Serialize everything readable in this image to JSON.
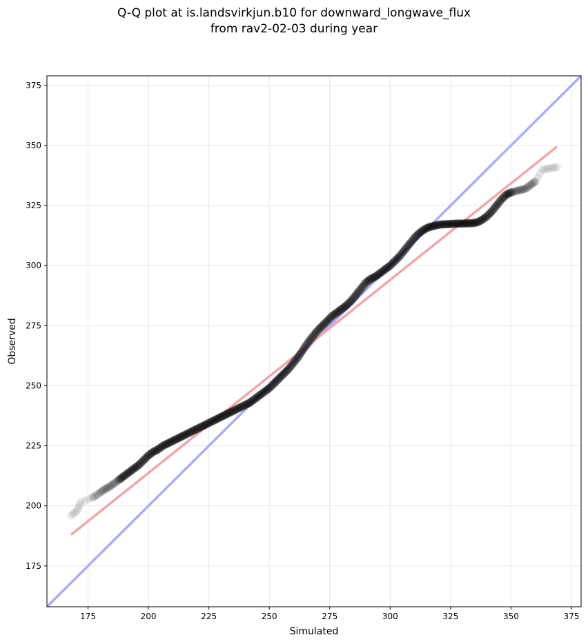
{
  "chart_data": {
    "type": "scatter",
    "title_line1": "Q-Q plot at is.landsvirkjun.b10 for downward_longwave_flux",
    "title_line2": "from rav2-02-03 during year",
    "xlabel": "Simulated",
    "ylabel": "Observed",
    "xlim": [
      158,
      379
    ],
    "ylim": [
      158,
      379
    ],
    "xticks": [
      175,
      200,
      225,
      250,
      275,
      300,
      325,
      350,
      375
    ],
    "yticks": [
      175,
      200,
      225,
      250,
      275,
      300,
      325,
      350,
      375
    ],
    "grid": true,
    "reference_line": {
      "name": "1:1",
      "color": "#aaaaff",
      "x": [
        158,
        379
      ],
      "y": [
        158,
        379
      ]
    },
    "fit_line": {
      "name": "fit",
      "color": "#f4a6a6",
      "x": [
        168,
        369
      ],
      "y": [
        188,
        349.5
      ]
    },
    "quantiles": {
      "color": "#000000",
      "x": [
        168,
        170.5,
        172,
        177,
        180,
        182,
        184,
        186,
        188,
        190,
        192,
        194,
        196,
        198,
        200,
        202,
        204,
        206,
        208,
        210,
        212,
        214,
        216,
        218,
        220,
        222,
        224,
        226,
        228,
        230,
        232,
        234,
        236,
        238,
        240,
        242,
        244,
        246,
        248,
        250,
        252,
        254,
        256,
        258,
        260,
        262,
        264,
        266,
        268,
        270,
        272,
        274,
        276,
        278,
        280,
        282,
        284,
        286,
        288,
        290,
        292,
        294,
        296,
        298,
        300,
        302,
        304,
        306,
        308,
        310,
        312,
        314,
        316,
        318,
        320,
        322,
        324,
        326,
        328,
        330,
        332,
        334,
        336,
        338,
        340,
        342,
        344,
        346,
        348,
        350,
        352,
        354,
        356,
        358,
        360,
        363,
        366,
        369
      ],
      "y": [
        196,
        198,
        201.5,
        203.5,
        205.5,
        207,
        208,
        209.5,
        211,
        212.5,
        214,
        215.5,
        217,
        219,
        221,
        222.5,
        223.5,
        225,
        226,
        227,
        228,
        229,
        230,
        231,
        232,
        233,
        234,
        235,
        236,
        237,
        238,
        239,
        240,
        241,
        242,
        243,
        244.5,
        246,
        247.5,
        249,
        251,
        253,
        255,
        257,
        259.5,
        262,
        265,
        268,
        270.5,
        273,
        275,
        277,
        279,
        280.5,
        282,
        283.5,
        285.5,
        288,
        290.5,
        293,
        294.5,
        295.5,
        297,
        298.5,
        300,
        302,
        304,
        306.5,
        309,
        311.5,
        313.5,
        315,
        316,
        316.5,
        317,
        317.2,
        317.3,
        317.4,
        317.5,
        317.5,
        317.6,
        317.7,
        318,
        319,
        320.5,
        322.5,
        325,
        327.5,
        329.5,
        330.5,
        331,
        331.5,
        332,
        333.5,
        335,
        340,
        340.5,
        341
      ]
    }
  }
}
